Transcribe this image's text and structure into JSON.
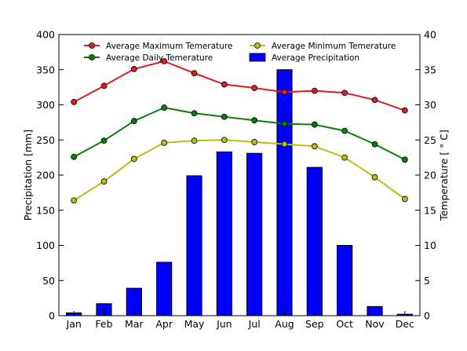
{
  "chart_data": {
    "type": "bar",
    "categories": [
      "Jan",
      "Feb",
      "Mar",
      "Apr",
      "May",
      "Jun",
      "Jul",
      "Aug",
      "Sep",
      "Oct",
      "Nov",
      "Dec"
    ],
    "precipitation": {
      "name": "Average Precipitation",
      "values": [
        4,
        17,
        39,
        76,
        199,
        233,
        231,
        350,
        211,
        100,
        13,
        2
      ],
      "color": "#0000ff"
    },
    "temperature_series": [
      {
        "name": "Average Maximum Temerature",
        "color": "#d81e1e",
        "values": [
          30.4,
          32.7,
          35.1,
          36.2,
          34.5,
          32.9,
          32.4,
          31.8,
          32.0,
          31.7,
          30.7,
          29.2
        ]
      },
      {
        "name": "Average Daily Temerature",
        "color": "#0b7d0b",
        "values": [
          22.6,
          24.9,
          27.7,
          29.6,
          28.8,
          28.3,
          27.8,
          27.3,
          27.2,
          26.3,
          24.4,
          22.2
        ]
      },
      {
        "name": "Average Minimum Temerature",
        "color": "#bcbc14",
        "values": [
          16.4,
          19.1,
          22.3,
          24.6,
          24.9,
          25.0,
          24.7,
          24.4,
          24.1,
          22.5,
          19.7,
          16.6
        ]
      }
    ],
    "y_left": {
      "label": "Precipitation [mm]",
      "lim": [
        0,
        400
      ],
      "ticks": [
        "0",
        "50",
        "100",
        "150",
        "200",
        "250",
        "300",
        "350",
        "400"
      ]
    },
    "y_right": {
      "label": "Temperature [$^\\circ$C]",
      "label_display": "Temperature [ ° C]",
      "lim": [
        0,
        40
      ],
      "ticks": [
        "0",
        "5",
        "10",
        "15",
        "20",
        "25",
        "30",
        "35",
        "40"
      ]
    },
    "legend": {
      "placement": "top",
      "entries": [
        "Average Maximum Temerature",
        "Average Minimum Temerature",
        "Average Daily Temerature",
        "Average Precipitation"
      ]
    },
    "grid": false,
    "title": ""
  }
}
